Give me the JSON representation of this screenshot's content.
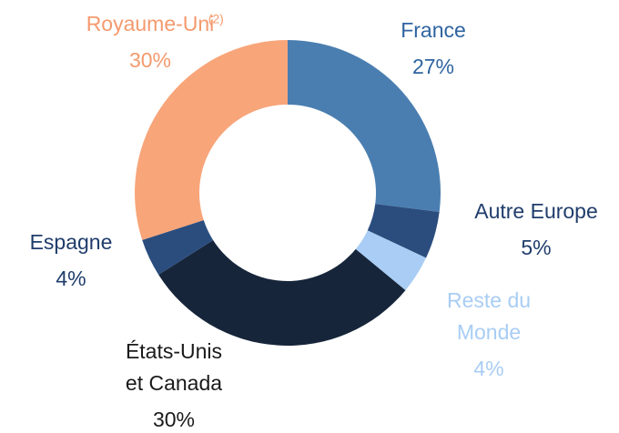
{
  "chart_data": {
    "type": "donut",
    "categories": [
      [
        "France"
      ],
      [
        "Autre Europe"
      ],
      [
        "Reste du",
        "Monde"
      ],
      [
        "États-Unis",
        "et Canada"
      ],
      [
        "Espagne"
      ],
      [
        "Royaume-Uni"
      ]
    ],
    "footnote_refs": [
      null,
      null,
      null,
      null,
      null,
      "(2)"
    ],
    "values": [
      27,
      5,
      4,
      30,
      4,
      30
    ],
    "value_labels": [
      "27%",
      "5%",
      "4%",
      "30%",
      "4%",
      "30%"
    ],
    "colors": [
      "#4a7eb0",
      "#2b4d7e",
      "#a9cdf4",
      "#16253a",
      "#2b4d7e",
      "#f8a57a"
    ],
    "label_colors": [
      "#2f64a0",
      "#1f3d6b",
      "#a9cdf4",
      "#1a1a1a",
      "#1f3d6b",
      "#f49a6e"
    ]
  }
}
